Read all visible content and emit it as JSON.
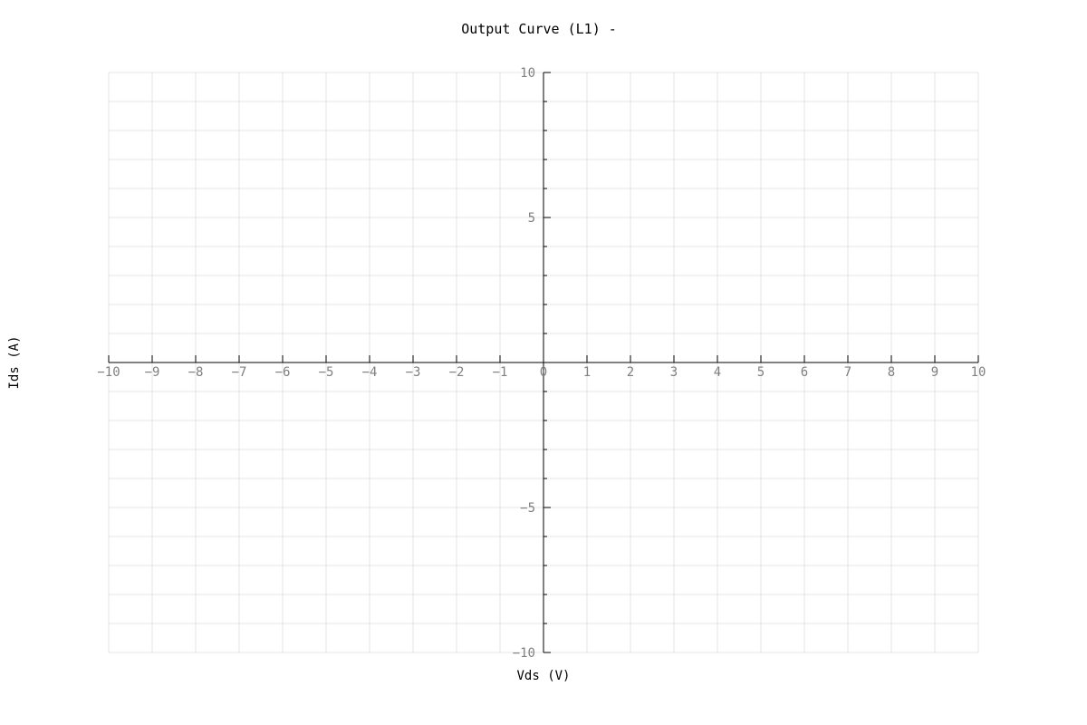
{
  "chart_data": {
    "type": "line",
    "title": "Output Curve (L1) -",
    "xlabel": "Vds (V)",
    "ylabel": "Ids (A)",
    "xlim": [
      -10,
      10
    ],
    "ylim": [
      -10,
      10
    ],
    "x_major_step": 1,
    "y_major_step": 5,
    "y_minor_step": 1,
    "x_ticks": [
      -10,
      -9,
      -8,
      -7,
      -6,
      -5,
      -4,
      -3,
      -2,
      -1,
      0,
      1,
      2,
      3,
      4,
      5,
      6,
      7,
      8,
      9,
      10
    ],
    "x_tick_labels": [
      "−10",
      "−9",
      "−8",
      "−7",
      "−6",
      "−5",
      "−4",
      "−3",
      "−2",
      "−1",
      "0",
      "1",
      "2",
      "3",
      "4",
      "5",
      "6",
      "7",
      "8",
      "9",
      "10"
    ],
    "y_ticks": [
      10,
      5,
      -5,
      -10
    ],
    "y_tick_labels": [
      "10",
      "5",
      "−5",
      "−10"
    ],
    "grid": true,
    "series": []
  },
  "colors": {
    "grid": "#e6e6e6",
    "axis": "#000000",
    "tick_text": "#808080",
    "text": "#000000"
  }
}
